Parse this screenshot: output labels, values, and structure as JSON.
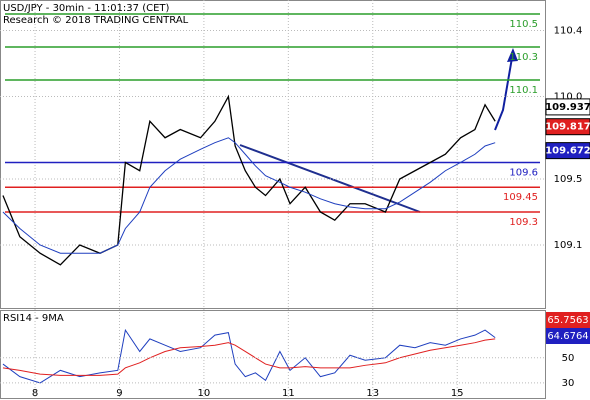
{
  "chart_data": [
    {
      "type": "line",
      "title": "USD/JPY - 30min - 11:01:37 (CET)",
      "subtitle": "Research © 2018 TRADING CENTRAL",
      "x": [
        -0.38,
        -0.18,
        0.06,
        0.3,
        0.53,
        0.77,
        0.98,
        1.07,
        1.24,
        1.36,
        1.54,
        1.72,
        1.96,
        2.13,
        2.29,
        2.37,
        2.49,
        2.61,
        2.73,
        2.9,
        3.02,
        3.2,
        3.38,
        3.55,
        3.73,
        3.91,
        4.15,
        4.32,
        4.5,
        4.68,
        4.86,
        5.04,
        5.21,
        5.33,
        5.45
      ],
      "series": [
        {
          "color": "#000000",
          "values": [
            109.4,
            109.15,
            109.05,
            108.98,
            109.1,
            109.05,
            109.1,
            109.6,
            109.55,
            109.85,
            109.75,
            109.8,
            109.75,
            109.85,
            110.0,
            109.7,
            109.55,
            109.45,
            109.4,
            109.5,
            109.35,
            109.45,
            109.3,
            109.25,
            109.35,
            109.35,
            109.3,
            109.5,
            109.55,
            109.6,
            109.65,
            109.75,
            109.8,
            109.95,
            109.85
          ]
        },
        {
          "color": "#1f3fbf",
          "values": [
            109.3,
            109.2,
            109.1,
            109.05,
            109.05,
            109.05,
            109.1,
            109.2,
            109.3,
            109.45,
            109.55,
            109.62,
            109.68,
            109.72,
            109.75,
            109.72,
            109.65,
            109.58,
            109.52,
            109.48,
            109.45,
            109.42,
            109.38,
            109.35,
            109.33,
            109.32,
            109.32,
            109.36,
            109.42,
            109.48,
            109.55,
            109.6,
            109.65,
            109.7,
            109.72
          ]
        }
      ],
      "xlim": [
        -0.415,
        6.04
      ],
      "xticks": [
        {
          "value": 0,
          "label": "8"
        },
        {
          "value": 1,
          "label": "9"
        },
        {
          "value": 2,
          "label": "10"
        },
        {
          "value": 3,
          "label": "11"
        },
        {
          "value": 4,
          "label": "13"
        },
        {
          "value": 5,
          "label": "15"
        }
      ],
      "ylim": [
        108.718,
        110.585
      ],
      "yticks": [
        {
          "value": 109.1,
          "label": "109.1"
        },
        {
          "value": 109.5,
          "label": "109.5"
        },
        {
          "value": 110.0,
          "label": "110.0"
        },
        {
          "value": 110.4,
          "label": "110.4"
        }
      ],
      "levels": [
        {
          "value": 110.5,
          "label": "110.5",
          "color": "#2a9d2a"
        },
        {
          "value": 110.3,
          "label": "110.3",
          "color": "#2a9d2a"
        },
        {
          "value": 110.1,
          "label": "110.1",
          "color": "#2a9d2a"
        },
        {
          "value": 109.6,
          "label": "109.6",
          "color": "#2020c0"
        },
        {
          "value": 109.45,
          "label": "109.45",
          "color": "#e02020"
        },
        {
          "value": 109.3,
          "label": "109.3",
          "color": "#e02020"
        }
      ],
      "price_tags": [
        {
          "value": 109.937,
          "label": "109.937",
          "color": "#ffffff"
        },
        {
          "value": 109.817,
          "label": "109.817",
          "color": "#e02020"
        },
        {
          "value": 109.672,
          "label": "109.672",
          "color": "#2020c0"
        }
      ]
    },
    {
      "type": "line",
      "title": "RSI14 - 9MA",
      "series": [
        {
          "color": "#1f3fbf",
          "values": [
            45,
            35,
            30,
            40,
            35,
            38,
            40,
            72,
            55,
            65,
            60,
            55,
            58,
            68,
            70,
            45,
            35,
            38,
            32,
            55,
            40,
            50,
            35,
            38,
            52,
            48,
            50,
            60,
            58,
            62,
            60,
            65,
            68,
            72,
            66
          ]
        },
        {
          "color": "#e02020",
          "values": [
            42,
            40,
            37,
            36,
            36,
            36,
            37,
            42,
            46,
            50,
            55,
            58,
            59,
            60,
            62,
            60,
            55,
            50,
            45,
            42,
            42,
            43,
            42,
            42,
            42,
            44,
            46,
            50,
            53,
            56,
            58,
            60,
            62,
            64,
            65
          ]
        }
      ],
      "ylim": [
        18,
        88
      ],
      "yticks": [
        30,
        50
      ],
      "tags": [
        {
          "value": 65.7563,
          "label": "65.7563",
          "color": "#e02020"
        },
        {
          "value": 64.6764,
          "label": "64.6764",
          "color": "#2020c0"
        }
      ]
    }
  ]
}
